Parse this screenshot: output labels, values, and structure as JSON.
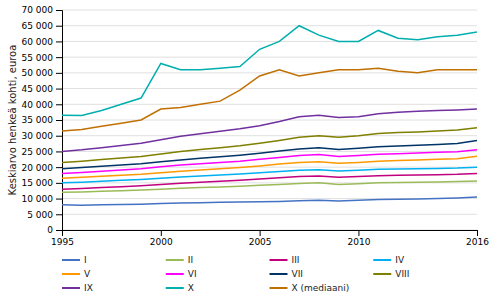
{
  "chart_data": {
    "type": "line",
    "ylabel": "Keskiarvo henkeä kohti, euroa",
    "x": [
      1995,
      1996,
      1997,
      1998,
      1999,
      2000,
      2001,
      2002,
      2003,
      2004,
      2005,
      2006,
      2007,
      2008,
      2009,
      2010,
      2011,
      2012,
      2013,
      2014,
      2015,
      2016
    ],
    "series": [
      {
        "name": "I",
        "color": "#4472C4",
        "values": [
          8000,
          7900,
          8000,
          8100,
          8200,
          8400,
          8600,
          8700,
          8800,
          8900,
          9000,
          9100,
          9300,
          9500,
          9200,
          9500,
          9700,
          9800,
          9900,
          10000,
          10200,
          10500
        ]
      },
      {
        "name": "II",
        "color": "#9BBB59",
        "values": [
          12000,
          12100,
          12300,
          12500,
          12700,
          13000,
          13300,
          13500,
          13700,
          13900,
          14200,
          14500,
          14800,
          15000,
          14500,
          14700,
          15000,
          15100,
          15200,
          15300,
          15400,
          15600
        ]
      },
      {
        "name": "III",
        "color": "#C0007F",
        "values": [
          13000,
          13200,
          13500,
          13800,
          14100,
          14500,
          14900,
          15200,
          15500,
          15800,
          16200,
          16600,
          17000,
          17200,
          16800,
          17000,
          17300,
          17400,
          17500,
          17600,
          17700,
          18000
        ]
      },
      {
        "name": "IV",
        "color": "#00B0F0",
        "values": [
          15000,
          15200,
          15500,
          15800,
          16100,
          16500,
          16900,
          17200,
          17500,
          17800,
          18200,
          18600,
          19000,
          19200,
          18800,
          19000,
          19300,
          19400,
          19500,
          19600,
          19700,
          20000
        ]
      },
      {
        "name": "V",
        "color": "#FF9900",
        "values": [
          16500,
          16800,
          17100,
          17400,
          17700,
          18200,
          18700,
          19100,
          19500,
          19900,
          20400,
          21000,
          21500,
          21700,
          21200,
          21500,
          21900,
          22100,
          22300,
          22500,
          22700,
          23500
        ]
      },
      {
        "name": "VI",
        "color": "#FF00FF",
        "values": [
          18000,
          18300,
          18700,
          19100,
          19500,
          20100,
          20700,
          21100,
          21500,
          21900,
          22500,
          23100,
          23700,
          24000,
          23400,
          23700,
          24100,
          24300,
          24500,
          24700,
          24900,
          25500
        ]
      },
      {
        "name": "VII",
        "color": "#003366",
        "values": [
          19500,
          19900,
          20300,
          20700,
          21100,
          21700,
          22300,
          22800,
          23300,
          23800,
          24400,
          25100,
          25800,
          26200,
          25600,
          26000,
          26500,
          26700,
          27000,
          27200,
          27500,
          28500
        ]
      },
      {
        "name": "VIII",
        "color": "#7F7F00",
        "values": [
          21500,
          21900,
          22400,
          22900,
          23400,
          24200,
          25000,
          25600,
          26200,
          26800,
          27600,
          28500,
          29500,
          30000,
          29500,
          30000,
          30700,
          31000,
          31200,
          31500,
          31800,
          32500
        ]
      },
      {
        "name": "IX",
        "color": "#7030A0",
        "values": [
          25000,
          25500,
          26200,
          26900,
          27600,
          28700,
          29800,
          30600,
          31400,
          32200,
          33200,
          34500,
          36000,
          36500,
          35800,
          36000,
          37000,
          37500,
          37800,
          38000,
          38200,
          38500
        ]
      },
      {
        "name": "X",
        "color": "#00AEAE",
        "values": [
          36500,
          36400,
          38000,
          40000,
          42000,
          53000,
          51000,
          51000,
          51500,
          52000,
          57500,
          60000,
          65000,
          62000,
          60000,
          60000,
          63500,
          61000,
          60500,
          61500,
          62000,
          63000
        ]
      },
      {
        "name": "X (mediaani)",
        "color": "#C07000",
        "values": [
          31500,
          32000,
          33000,
          34000,
          35000,
          38500,
          39000,
          40000,
          41000,
          44500,
          49000,
          51000,
          49000,
          50000,
          51000,
          51000,
          51500,
          50500,
          50000,
          51000,
          51000,
          51000
        ]
      }
    ],
    "xlim": [
      1995,
      2016
    ],
    "xticks": [
      1995,
      2000,
      2005,
      2010,
      2016
    ],
    "ylim": [
      0,
      70000
    ],
    "yticks": [
      0,
      {
        "value": 5000,
        "label": "5 000"
      },
      {
        "value": 10000,
        "label": "10 000"
      },
      {
        "value": 15000,
        "label": "15 000"
      },
      {
        "value": 20000,
        "label": "20 000"
      },
      {
        "value": 25000,
        "label": "25 000"
      },
      {
        "value": 30000,
        "label": "30 000"
      },
      {
        "value": 35000,
        "label": "35 000"
      },
      {
        "value": 40000,
        "label": "40 000"
      },
      {
        "value": 45000,
        "label": "45 000"
      },
      {
        "value": 50000,
        "label": "50 000"
      },
      {
        "value": 55000,
        "label": "55 000"
      },
      {
        "value": 60000,
        "label": "60 000"
      },
      {
        "value": 65000,
        "label": "65 000"
      },
      {
        "value": 70000,
        "label": "70 000"
      }
    ],
    "grid": true,
    "legend": "bottom"
  }
}
